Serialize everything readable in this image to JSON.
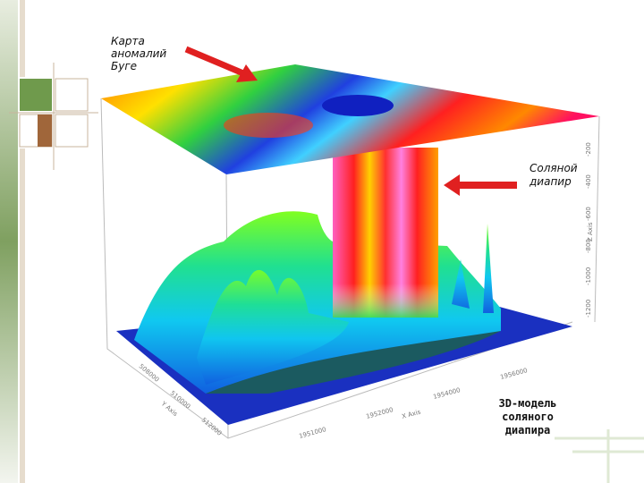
{
  "annotations": {
    "bouguer_map": [
      "Карта",
      "аномалий",
      "Буге"
    ],
    "salt_diapir": [
      "Соляной",
      "диапир"
    ],
    "model": [
      "3D-модель",
      "соляного",
      "диапира"
    ]
  },
  "axes": {
    "x_label": "X Axis",
    "y_label": "Y Axis",
    "z_label": "Z Axis",
    "x_ticks": [
      "1951000",
      "1952000",
      "1954000",
      "1956000"
    ],
    "y_ticks": [
      "508000",
      "510000",
      "512000"
    ],
    "z_ticks": [
      "-200",
      "-400",
      "-600",
      "-800",
      "-1000",
      "-1200"
    ]
  }
}
